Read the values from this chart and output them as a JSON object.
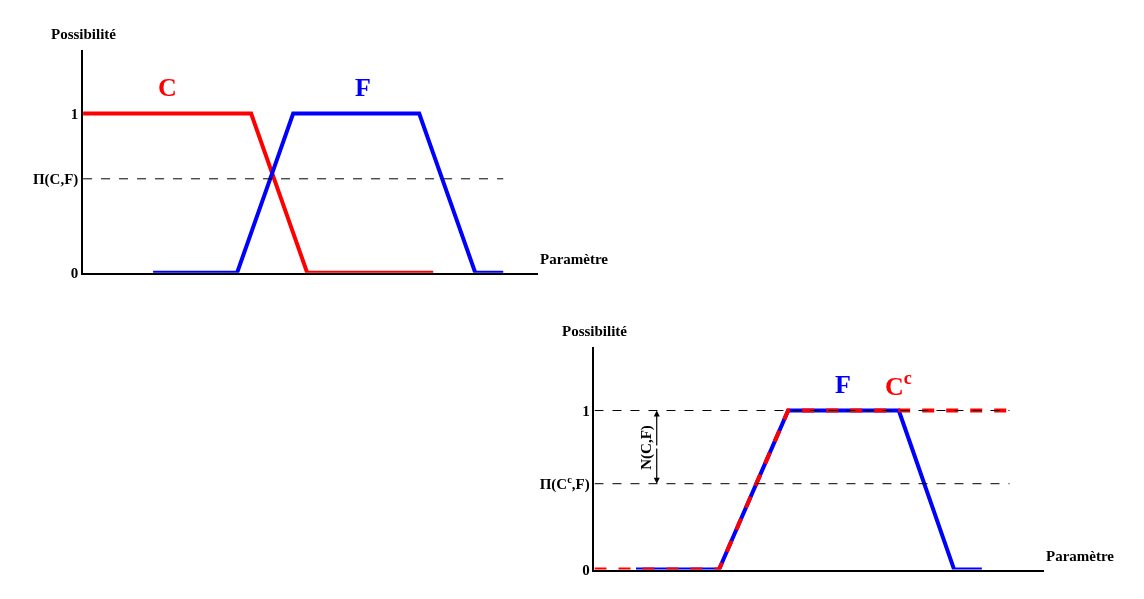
{
  "chart_data": [
    {
      "type": "line",
      "xlabel": "Paramètre",
      "ylabel": "Possibilité",
      "categories": [
        null,
        null,
        null,
        null,
        null,
        null,
        null,
        null,
        null,
        null,
        null,
        null,
        null,
        null,
        null,
        null,
        null,
        null,
        null,
        null,
        null,
        null,
        null,
        null,
        null,
        null,
        null,
        null,
        null,
        null,
        null
      ],
      "series": [
        {
          "name": "C",
          "color": "#ff0000",
          "values": [
            1,
            1,
            1,
            1,
            1,
            1,
            1,
            1,
            1,
            1,
            1,
            1,
            1,
            0.75,
            0.5,
            0.25,
            0,
            0,
            0,
            0,
            0,
            0,
            0,
            0,
            0,
            0,
            null,
            null,
            null,
            null,
            null
          ]
        },
        {
          "name": "F",
          "color": "#0000ff",
          "values": [
            null,
            null,
            null,
            null,
            null,
            0,
            0,
            0,
            0,
            0,
            0,
            0,
            0.25,
            0.5,
            0.75,
            1,
            1,
            1,
            1,
            1,
            1,
            1,
            1,
            1,
            1,
            0.75,
            0.5,
            0.25,
            0,
            0,
            0
          ]
        }
      ],
      "ylim": [
        0,
        1.4
      ],
      "yticks": [
        0,
        {
          "value": 0.59,
          "label": "Π(C,F)"
        },
        1
      ],
      "tick_labels": "y",
      "ref_lines": [
        {
          "axis": "y",
          "value": 0.59,
          "line_style": "dashed",
          "color": "#000000"
        }
      ],
      "legend": false,
      "line_style": "solid",
      "marker": "none"
    },
    {
      "type": "line",
      "xlabel": "Paramètre",
      "ylabel": "Possibilité",
      "categories": [
        null,
        null,
        null,
        null,
        null,
        null,
        null,
        null,
        null,
        null,
        null,
        null,
        null,
        null,
        null,
        null,
        null,
        null,
        null,
        null,
        null,
        null,
        null,
        null,
        null,
        null,
        null,
        null,
        null,
        null,
        null
      ],
      "series": [
        {
          "name": "F",
          "color": "#0000ff",
          "values": [
            null,
            null,
            null,
            0,
            0,
            0,
            0,
            0,
            0,
            0,
            0.2,
            0.4,
            0.6,
            0.8,
            1,
            1,
            1,
            1,
            1,
            1,
            1,
            1,
            1,
            0.75,
            0.5,
            0.25,
            0,
            0,
            0,
            null,
            null
          ]
        },
        {
          "name": "C$^{c}$",
          "color": "#ff0000",
          "line_style": "dashed",
          "values": [
            0,
            0,
            0,
            0,
            0,
            0,
            0,
            0,
            0,
            0,
            0.2,
            0.4,
            0.6,
            0.8,
            1,
            1,
            1,
            1,
            1,
            1,
            1,
            1,
            1,
            1,
            1,
            1,
            1,
            1,
            1,
            1,
            1
          ]
        }
      ],
      "ylim": [
        0,
        1.4
      ],
      "yticks": [
        0,
        {
          "value": 0.54,
          "label": "Π(C$^{c}$,F)"
        },
        1
      ],
      "tick_labels": "y",
      "ref_lines": [
        {
          "axis": "y",
          "value": 1,
          "line_style": "dashed",
          "color": "#000000"
        },
        {
          "axis": "y",
          "value": 0.54,
          "line_style": "dashed",
          "color": "#000000"
        }
      ],
      "annotations": [
        "N(C,F)"
      ],
      "legend": false,
      "line_style": "solid",
      "marker": "none"
    }
  ]
}
